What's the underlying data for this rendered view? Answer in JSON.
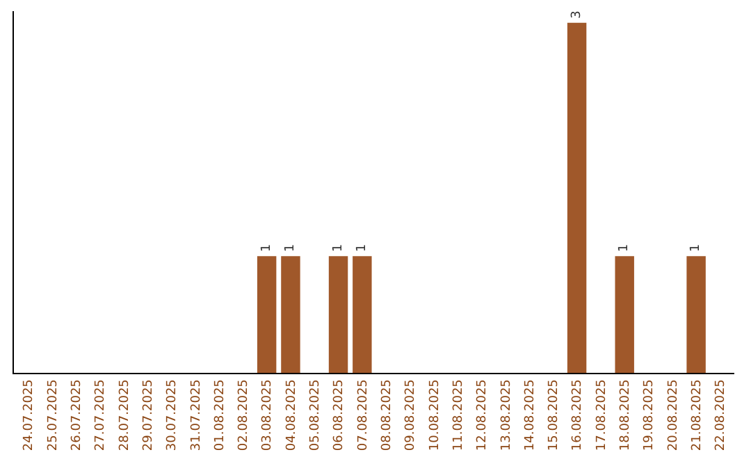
{
  "chart_data": {
    "type": "bar",
    "categories": [
      "24.07.2025",
      "25.07.2025",
      "26.07.2025",
      "27.07.2025",
      "28.07.2025",
      "29.07.2025",
      "30.07.2025",
      "31.07.2025",
      "01.08.2025",
      "02.08.2025",
      "03.08.2025",
      "04.08.2025",
      "05.08.2025",
      "06.08.2025",
      "07.08.2025",
      "08.08.2025",
      "09.08.2025",
      "10.08.2025",
      "11.08.2025",
      "12.08.2025",
      "13.08.2025",
      "14.08.2025",
      "15.08.2025",
      "16.08.2025",
      "17.08.2025",
      "18.08.2025",
      "19.08.2025",
      "20.08.2025",
      "21.08.2025",
      "22.08.2025"
    ],
    "values": [
      0,
      0,
      0,
      0,
      0,
      0,
      0,
      0,
      0,
      0,
      1,
      1,
      0,
      1,
      1,
      0,
      0,
      0,
      0,
      0,
      0,
      0,
      0,
      3,
      0,
      1,
      0,
      0,
      1,
      0
    ],
    "value_labels": [
      null,
      null,
      null,
      null,
      null,
      null,
      null,
      null,
      null,
      null,
      "1",
      "1",
      null,
      "1",
      "1",
      null,
      null,
      null,
      null,
      null,
      null,
      null,
      null,
      "3",
      null,
      "1",
      null,
      null,
      "1",
      null
    ],
    "color": "#a0582a",
    "ylim": [
      0,
      3.1
    ],
    "tick_labels": "x"
  }
}
